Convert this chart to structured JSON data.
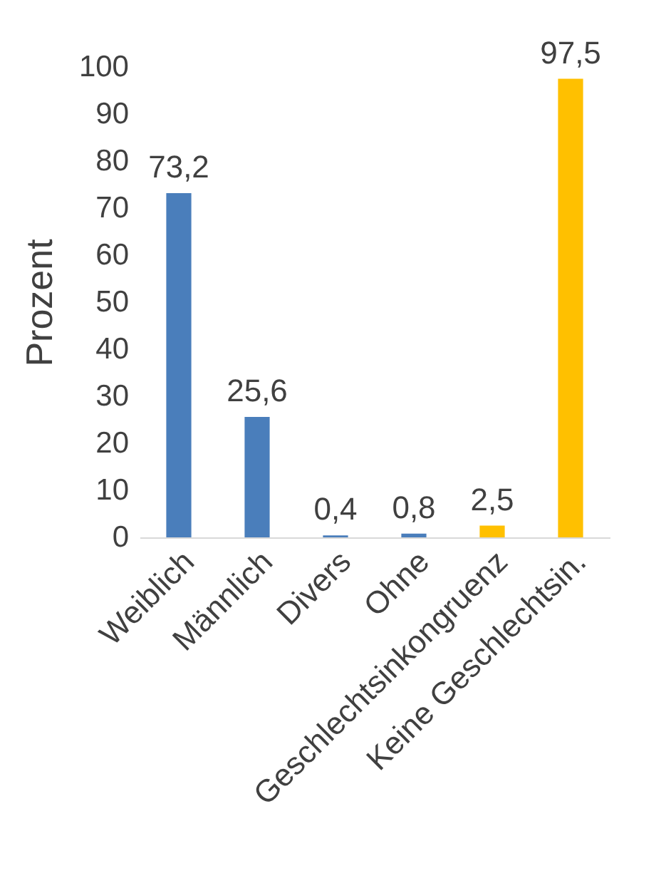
{
  "chart_data": {
    "type": "bar",
    "ylabel": "Prozent",
    "categories": [
      "Weiblich",
      "Männlich",
      "Divers",
      "Ohne",
      "Geschlechtsinkongruenz",
      "Keine Geschlechtsin."
    ],
    "values": [
      73.2,
      25.6,
      0.4,
      0.8,
      2.5,
      97.5
    ],
    "colors": [
      "#4a7ebb",
      "#4a7ebb",
      "#4a7ebb",
      "#4a7ebb",
      "#ffc000",
      "#ffc000"
    ],
    "value_labels": [
      "73,2",
      "25,6",
      "0,4",
      "0,8",
      "2,5",
      "97,5"
    ],
    "ylim": [
      0,
      100
    ],
    "yticks": [
      0,
      10,
      20,
      30,
      40,
      50,
      60,
      70,
      80,
      90,
      100
    ],
    "grid": false
  }
}
